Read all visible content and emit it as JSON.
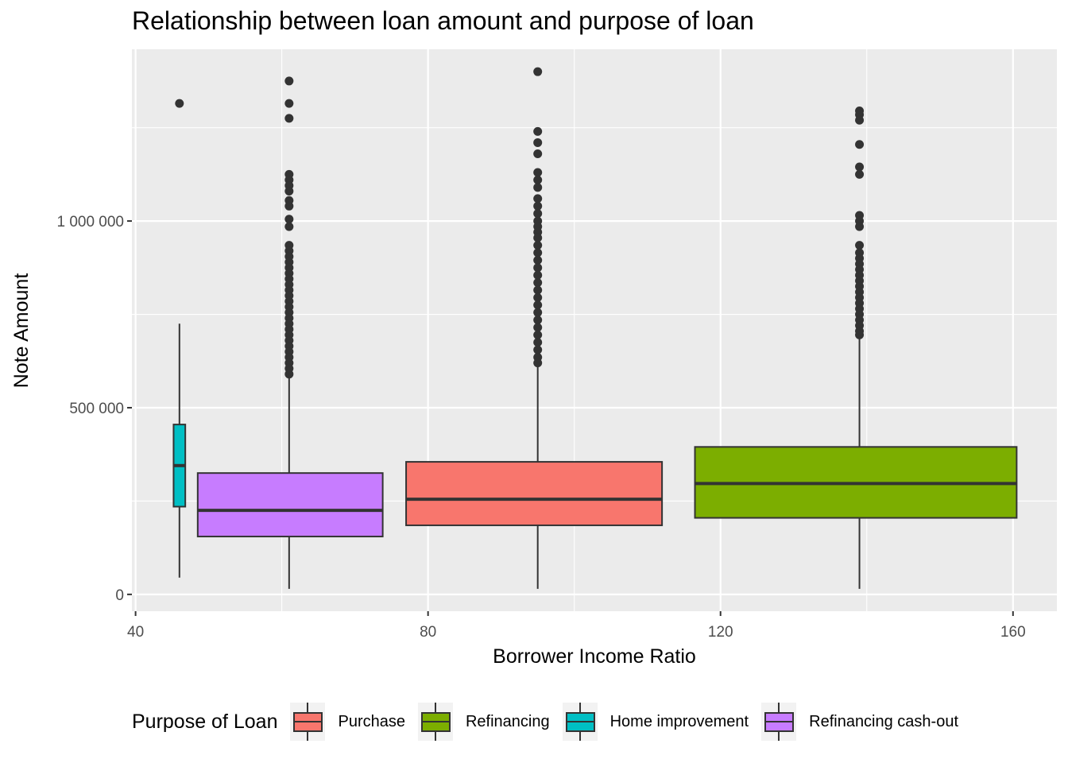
{
  "chart_data": {
    "type": "boxplot",
    "title": "Relationship between loan amount and purpose of loan",
    "xlabel": "Borrower Income Ratio",
    "ylabel": "Note Amount",
    "xlim": [
      39.5,
      166
    ],
    "ylim": [
      -45000,
      1460000
    ],
    "x_ticks": [
      40,
      80,
      120,
      160
    ],
    "x_tick_labels": [
      "40",
      "80",
      "120",
      "160"
    ],
    "y_ticks": [
      0,
      500000,
      1000000
    ],
    "y_tick_labels": [
      "0",
      "500 000",
      "1 000 000"
    ],
    "grid": true,
    "legend": {
      "title": "Purpose of Loan",
      "position": "bottom",
      "entries": [
        {
          "name": "Purchase",
          "color": "#F8766D"
        },
        {
          "name": "Refinancing",
          "color": "#7CAE00"
        },
        {
          "name": "Home improvement",
          "color": "#00BFC4"
        },
        {
          "name": "Refinancing cash-out",
          "color": "#C77CFF"
        }
      ]
    },
    "series": [
      {
        "name": "Purchase",
        "color": "#F8766D",
        "x": 95,
        "x_range": [
          77,
          112
        ],
        "whisker_low": 15000,
        "q1": 185000,
        "median": 255000,
        "q3": 355000,
        "whisker_high": 612000,
        "outliers": [
          1400000,
          1240000,
          1210000,
          1180000,
          1130000,
          1110000,
          1090000,
          1060000,
          1040000,
          1020000,
          1000000,
          985000,
          970000,
          955000,
          935000,
          915000,
          895000,
          875000,
          855000,
          835000,
          815000,
          795000,
          775000,
          755000,
          735000,
          715000,
          695000,
          675000,
          655000,
          635000,
          620000
        ]
      },
      {
        "name": "Refinancing",
        "color": "#7CAE00",
        "x": 139,
        "x_range": [
          116.5,
          160.5
        ],
        "whisker_low": 15000,
        "q1": 205000,
        "median": 297000,
        "q3": 395000,
        "whisker_high": 690000,
        "outliers": [
          1295000,
          1285000,
          1270000,
          1205000,
          1145000,
          1125000,
          1015000,
          1000000,
          985000,
          935000,
          915000,
          900000,
          885000,
          870000,
          855000,
          840000,
          825000,
          810000,
          795000,
          780000,
          765000,
          750000,
          735000,
          720000,
          705000,
          695000
        ]
      },
      {
        "name": "Home improvement",
        "color": "#00BFC4",
        "x": 46,
        "x_range": [
          45.2,
          46.8
        ],
        "whisker_low": 45000,
        "q1": 235000,
        "median": 345000,
        "q3": 455000,
        "whisker_high": 725000,
        "outliers": [
          1315000
        ]
      },
      {
        "name": "Refinancing cash-out",
        "color": "#C77CFF",
        "x": 61,
        "x_range": [
          48.5,
          73.8
        ],
        "whisker_low": 15000,
        "q1": 155000,
        "median": 225000,
        "q3": 325000,
        "whisker_high": 582000,
        "outliers": [
          1375000,
          1315000,
          1275000,
          1125000,
          1110000,
          1095000,
          1080000,
          1055000,
          1040000,
          1005000,
          985000,
          935000,
          920000,
          905000,
          890000,
          875000,
          860000,
          845000,
          830000,
          815000,
          800000,
          785000,
          770000,
          755000,
          740000,
          725000,
          710000,
          695000,
          680000,
          665000,
          650000,
          635000,
          620000,
          605000,
          590000
        ]
      }
    ]
  }
}
